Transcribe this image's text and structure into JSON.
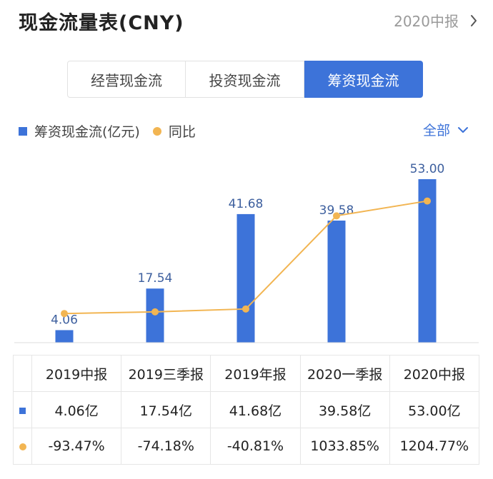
{
  "header": {
    "title": "现金流量表(CNY)",
    "period_label": "2020中报"
  },
  "tabs": [
    {
      "label": "经营现金流",
      "active": false
    },
    {
      "label": "投资现金流",
      "active": false
    },
    {
      "label": "筹资现金流",
      "active": true
    }
  ],
  "legend": {
    "bar_label": "筹资现金流(亿元)",
    "line_label": "同比"
  },
  "range_filter": {
    "label": "全部"
  },
  "colors": {
    "bar": "#3d73d9",
    "line": "#f2b552",
    "negative": "#2aa06c",
    "positive": "#e04b4b"
  },
  "chart_data": {
    "type": "bar",
    "categories": [
      "2019中报",
      "2019三季报",
      "2019年报",
      "2020一季报",
      "2020中报"
    ],
    "series": [
      {
        "name": "筹资现金流(亿元)",
        "type": "bar",
        "values": [
          4.06,
          17.54,
          41.68,
          39.58,
          53.0
        ],
        "labels": [
          "4.06",
          "17.54",
          "41.68",
          "39.58",
          "53.00"
        ]
      },
      {
        "name": "同比",
        "type": "line",
        "values": [
          -93.47,
          -74.18,
          -40.81,
          1033.85,
          1204.77
        ]
      }
    ],
    "ylim": [
      0,
      53.0
    ],
    "grid": false
  },
  "table": {
    "headers": [
      "2019中报",
      "2019三季报",
      "2019年报",
      "2020一季报",
      "2020中报"
    ],
    "value_row": [
      "4.06亿",
      "17.54亿",
      "41.68亿",
      "39.58亿",
      "53.00亿"
    ],
    "yoy_row": [
      "-93.47%",
      "-74.18%",
      "-40.81%",
      "1033.85%",
      "1204.77%"
    ]
  }
}
